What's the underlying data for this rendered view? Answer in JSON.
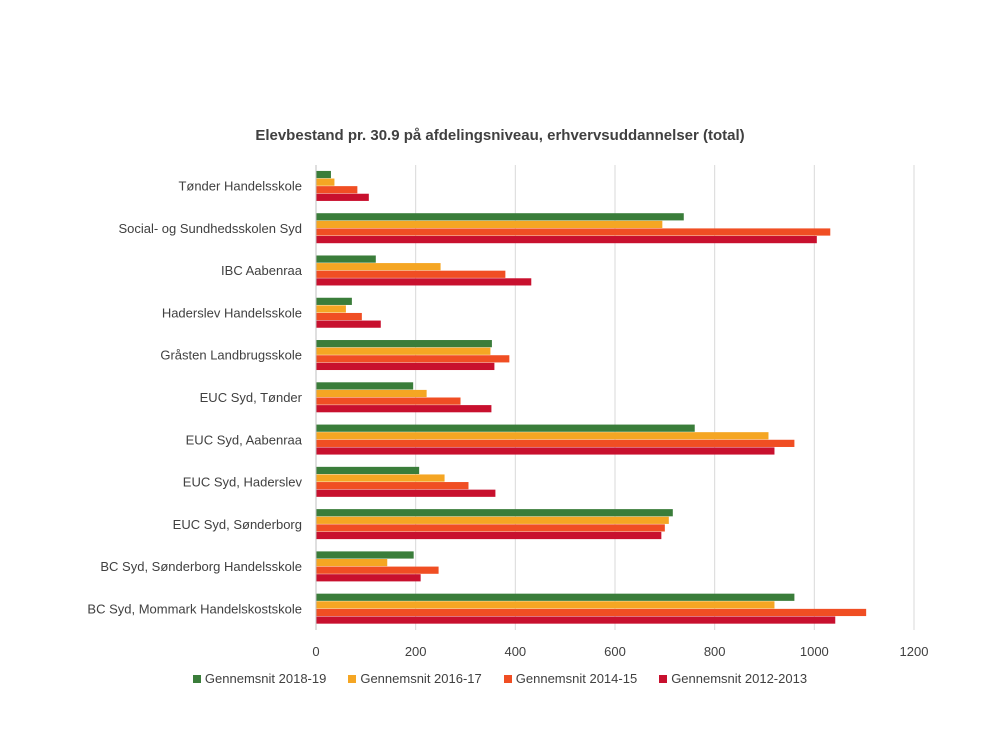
{
  "chart_data": {
    "type": "bar",
    "orientation": "horizontal",
    "title": "Elevbestand pr. 30.9 på afdelingsniveau, erhvervsuddannelser (total)",
    "xlabel": "",
    "ylabel": "",
    "xlim": [
      0,
      1200
    ],
    "xticks": [
      0,
      200,
      400,
      600,
      800,
      1000,
      1200
    ],
    "grid": true,
    "legend_position": "bottom",
    "categories": [
      "Tønder Handelsskole",
      "Social- og Sundhedsskolen Syd",
      "IBC  Aabenraa",
      "Haderslev Handelsskole",
      "Gråsten Landbrugsskole",
      "EUC Syd, Tønder",
      "EUC Syd, Aabenraa",
      "EUC Syd, Haderslev",
      "EUC Syd, Sønderborg",
      "BC Syd, Sønderborg Handelsskole",
      "BC Syd, Mommark Handelskostskole"
    ],
    "series": [
      {
        "name": "Gennemsnit 2018-19",
        "color": "#3a7d3a",
        "values": [
          30,
          738,
          120,
          72,
          353,
          195,
          760,
          207,
          716,
          196,
          960
        ]
      },
      {
        "name": "Gennemsnit 2016-17",
        "color": "#f5a623",
        "values": [
          37,
          695,
          250,
          60,
          350,
          222,
          908,
          258,
          708,
          143,
          920
        ]
      },
      {
        "name": "Gennemsnit 2014-15",
        "color": "#f04e23",
        "values": [
          83,
          1032,
          380,
          92,
          388,
          290,
          960,
          306,
          700,
          246,
          1104
        ]
      },
      {
        "name": "Gennemsnit 2012-2013",
        "color": "#c8102e",
        "values": [
          106,
          1005,
          432,
          130,
          358,
          352,
          920,
          360,
          693,
          210,
          1042
        ]
      }
    ]
  }
}
